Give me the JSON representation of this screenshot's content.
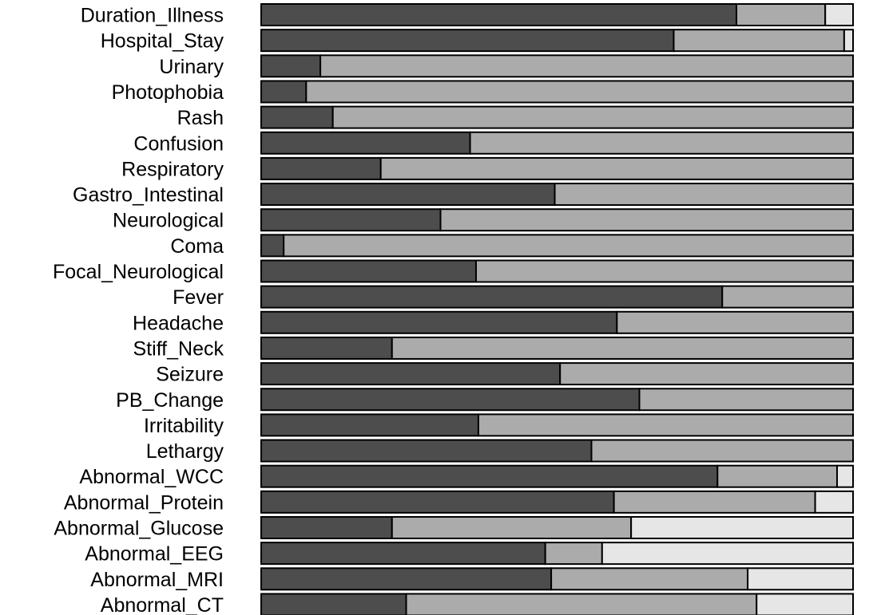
{
  "chart_data": {
    "type": "bar",
    "orientation": "horizontal",
    "stacked": true,
    "normalized": true,
    "title": "",
    "xlabel": "",
    "ylabel": "",
    "xlim": [
      0,
      100
    ],
    "grid": false,
    "legend": "none",
    "categories": [
      "Duration_Illness",
      "Hospital_Stay",
      "Urinary",
      "Photophobia",
      "Rash",
      "Confusion",
      "Respiratory",
      "Gastro_Intestinal",
      "Neurological",
      "Coma",
      "Focal_Neurological",
      "Fever",
      "Headache",
      "Stiff_Neck",
      "Seizure",
      "PB_Change",
      "Irritability",
      "Lethargy",
      "Abnormal_WCC",
      "Abnormal_Protein",
      "Abnormal_Glucose",
      "Abnormal_EEG",
      "Abnormal_MRI",
      "Abnormal_CT"
    ],
    "series": [
      {
        "color": "#4d4d4d",
        "values": [
          80.3,
          69.7,
          10.0,
          7.6,
          12.1,
          35.3,
          20.2,
          49.6,
          30.3,
          3.8,
          36.3,
          77.9,
          60.1,
          22.1,
          50.5,
          63.9,
          36.7,
          55.8,
          77.1,
          59.6,
          22.1,
          48.0,
          49.0,
          24.5
        ]
      },
      {
        "color": "#ababab",
        "values": [
          15.0,
          28.8,
          90.0,
          92.4,
          87.9,
          64.7,
          79.8,
          50.4,
          69.7,
          96.2,
          63.7,
          22.1,
          39.9,
          77.9,
          49.5,
          36.1,
          63.3,
          44.2,
          20.2,
          34.0,
          40.4,
          9.6,
          33.2,
          59.2
        ]
      },
      {
        "color": "#e6e6e6",
        "values": [
          4.7,
          1.5,
          0,
          0,
          0,
          0,
          0,
          0,
          0,
          0,
          0,
          0,
          0,
          0,
          0,
          0,
          0,
          0,
          2.7,
          6.4,
          37.5,
          42.4,
          17.8,
          16.3
        ]
      }
    ]
  }
}
